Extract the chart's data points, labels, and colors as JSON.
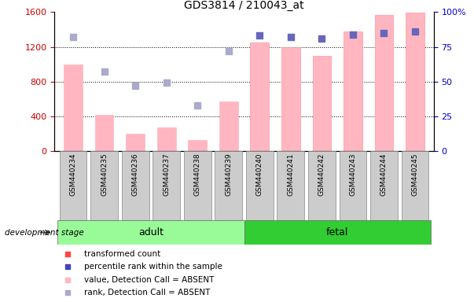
{
  "title": "GDS3814 / 210043_at",
  "categories": [
    "GSM440234",
    "GSM440235",
    "GSM440236",
    "GSM440237",
    "GSM440238",
    "GSM440239",
    "GSM440240",
    "GSM440241",
    "GSM440242",
    "GSM440243",
    "GSM440244",
    "GSM440245"
  ],
  "bar_values": [
    1000,
    420,
    200,
    270,
    130,
    570,
    1250,
    1200,
    1100,
    1380,
    1570,
    1590
  ],
  "rank_values": [
    82,
    57,
    47,
    49,
    33,
    72,
    83,
    82,
    81,
    84,
    85,
    86
  ],
  "bar_absent": [
    true,
    true,
    true,
    true,
    true,
    true,
    false,
    false,
    false,
    false,
    false,
    false
  ],
  "rank_absent": [
    true,
    true,
    true,
    true,
    true,
    true,
    false,
    false,
    false,
    false,
    false,
    false
  ],
  "groups": [
    {
      "label": "adult",
      "start": 0,
      "end": 5,
      "color": "#98FB98"
    },
    {
      "label": "fetal",
      "start": 6,
      "end": 11,
      "color": "#32CD32"
    }
  ],
  "left_ylim": [
    0,
    1600
  ],
  "right_ylim": [
    0,
    100
  ],
  "left_yticks": [
    0,
    400,
    800,
    1200,
    1600
  ],
  "right_yticks": [
    0,
    25,
    50,
    75,
    100
  ],
  "bar_color_absent": "#FFB6C1",
  "bar_color_present": "#FFB6C1",
  "bar_edge_absent": "#FFB6C1",
  "bar_edge_present": "#FF9999",
  "dot_color_present": "#6666BB",
  "dot_color_absent": "#AAAACC",
  "dot_size": 40,
  "background_color": "#ffffff",
  "left_label_color": "#CC0000",
  "right_label_color": "#0000CC",
  "legend_items": [
    {
      "label": "transformed count",
      "color": "#FF4444"
    },
    {
      "label": "percentile rank within the sample",
      "color": "#4444BB"
    },
    {
      "label": "value, Detection Call = ABSENT",
      "color": "#FFB6C1"
    },
    {
      "label": "rank, Detection Call = ABSENT",
      "color": "#AAAACC"
    }
  ]
}
